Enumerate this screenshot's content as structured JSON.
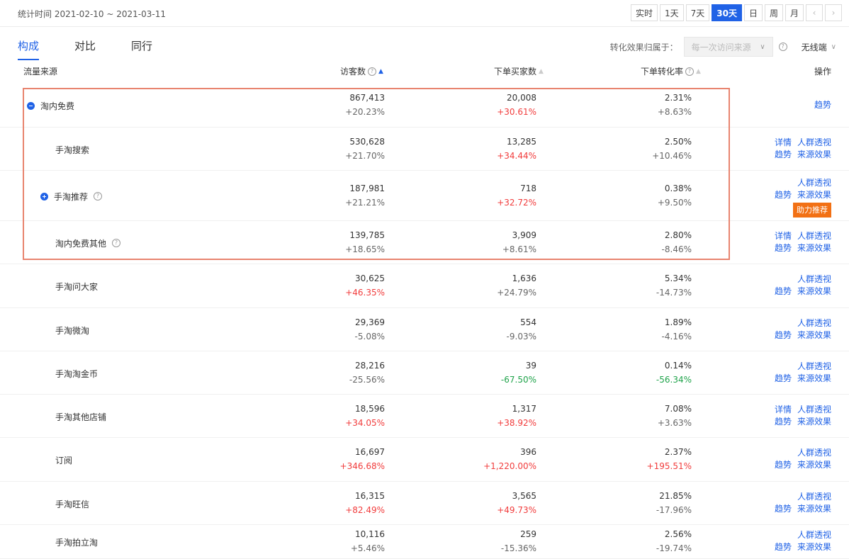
{
  "topbar": {
    "stat_time": "统计时间 2021-02-10 ~ 2021-03-11",
    "periods": [
      "实时",
      "1天",
      "7天",
      "30天",
      "日",
      "周",
      "月"
    ],
    "active_period": "30天",
    "prev_icon": "chevron-left-icon",
    "next_icon": "chevron-right-icon"
  },
  "tabs": [
    "构成",
    "对比",
    "同行"
  ],
  "active_tab": "构成",
  "attribution": {
    "label": "转化效果归属于：",
    "value": "每一次访问来源",
    "device": "无线端"
  },
  "table": {
    "headers": {
      "source": "流量来源",
      "visitors": "访客数",
      "buyers": "下单买家数",
      "conversion": "下单转化率",
      "ops": "操作"
    },
    "rows": [
      {
        "name": "淘内免费",
        "v1": "867,413",
        "d1": "+20.23%",
        "v2": "20,008",
        "d2": "+30.61%",
        "v3": "2.31%",
        "d3": "+8.63%",
        "ops": [
          "趋势"
        ],
        "level": 0
      },
      {
        "name": "手淘搜索",
        "v1": "530,628",
        "d1": "+21.70%",
        "v2": "13,285",
        "d2": "+34.44%",
        "v3": "2.50%",
        "d3": "+10.46%",
        "ops": [
          "详情",
          "人群透视",
          "趋势",
          "来源效果"
        ],
        "level": 1
      },
      {
        "name": "手淘推荐",
        "v1": "187,981",
        "d1": "+21.21%",
        "v2": "718",
        "d2": "+32.72%",
        "v3": "0.38%",
        "d3": "+9.50%",
        "ops": [
          "人群透视",
          "趋势",
          "来源效果"
        ],
        "badge": "助力推荐",
        "level": 1
      },
      {
        "name": "淘内免费其他",
        "v1": "139,785",
        "d1": "+18.65%",
        "v2": "3,909",
        "d2": "+8.61%",
        "v3": "2.80%",
        "d3": "-8.46%",
        "ops": [
          "详情",
          "人群透视",
          "趋势",
          "来源效果"
        ],
        "level": 1
      },
      {
        "name": "手淘问大家",
        "v1": "30,625",
        "d1": "+46.35%",
        "v2": "1,636",
        "d2": "+24.79%",
        "v3": "5.34%",
        "d3": "-14.73%",
        "ops": [
          "人群透视",
          "趋势",
          "来源效果"
        ],
        "level": 1
      },
      {
        "name": "手淘微淘",
        "v1": "29,369",
        "d1": "-5.08%",
        "v2": "554",
        "d2": "-9.03%",
        "v3": "1.89%",
        "d3": "-4.16%",
        "ops": [
          "人群透视",
          "趋势",
          "来源效果"
        ],
        "level": 1
      },
      {
        "name": "手淘淘金币",
        "v1": "28,216",
        "d1": "-25.56%",
        "v2": "39",
        "d2": "-67.50%",
        "v3": "0.14%",
        "d3": "-56.34%",
        "ops": [
          "人群透视",
          "趋势",
          "来源效果"
        ],
        "level": 1
      },
      {
        "name": "手淘其他店铺",
        "v1": "18,596",
        "d1": "+34.05%",
        "v2": "1,317",
        "d2": "+38.92%",
        "v3": "7.08%",
        "d3": "+3.63%",
        "ops": [
          "详情",
          "人群透视",
          "趋势",
          "来源效果"
        ],
        "level": 1
      },
      {
        "name": "订阅",
        "v1": "16,697",
        "d1": "+346.68%",
        "v2": "396",
        "d2": "+1,220.00%",
        "v3": "2.37%",
        "d3": "+195.51%",
        "ops": [
          "人群透视",
          "趋势",
          "来源效果"
        ],
        "level": 1
      },
      {
        "name": "手淘旺信",
        "v1": "16,315",
        "d1": "+82.49%",
        "v2": "3,565",
        "d2": "+49.73%",
        "v3": "21.85%",
        "d3": "-17.96%",
        "ops": [
          "人群透视",
          "趋势",
          "来源效果"
        ],
        "level": 1
      },
      {
        "name": "手淘拍立淘",
        "v1": "10,116",
        "d1": "+5.46%",
        "v2": "259",
        "d2": "-15.36%",
        "v3": "2.56%",
        "d3": "-19.74%",
        "ops": [
          "人群透视",
          "趋势",
          "来源效果"
        ],
        "level": 1
      }
    ]
  },
  "colors": {
    "accent": "#2062e6",
    "up": "#f13c3c",
    "down": "#1fa34a",
    "neutral": "#666666",
    "badge": "#f27014",
    "highlight": "#e8846f"
  }
}
